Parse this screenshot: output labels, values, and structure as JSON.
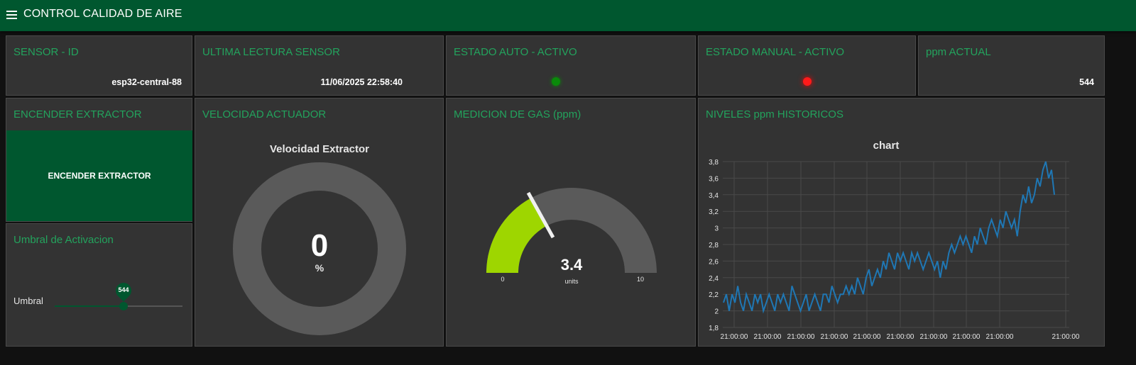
{
  "header": {
    "title": "CONTROL CALIDAD DE AIRE",
    "menu_icon": "hamburger-menu-icon"
  },
  "colors": {
    "header": "#00572f",
    "accent_title": "#23a35d",
    "card": "#333333",
    "gauge_fill": "#9ed600",
    "chart_line": "#1f77b4",
    "led_auto": "#0a8a0a",
    "led_manual": "#ff0000"
  },
  "sensor": {
    "title": "SENSOR - ID",
    "value": "esp32-central-88"
  },
  "last_reading": {
    "title": "ULTIMA LECTURA SENSOR",
    "value": "11/06/2025 22:58:40"
  },
  "auto_state": {
    "title": "ESTADO AUTO - ACTIVO",
    "led": "green"
  },
  "manual_state": {
    "title": "ESTADO MANUAL - ACTIVO",
    "led": "red"
  },
  "ppm_current": {
    "title": "ppm ACTUAL",
    "value": "544"
  },
  "extractor": {
    "title": "ENCENDER EXTRACTOR",
    "button_label": "ENCENDER EXTRACTOR"
  },
  "threshold": {
    "title": "Umbral de Activacion",
    "label": "Umbral",
    "value": "544",
    "fraction": 0.54
  },
  "speed": {
    "title": "VELOCIDAD ACTUADOR",
    "gauge_title": "Velocidad Extractor",
    "value": "0",
    "unit": "%"
  },
  "gas": {
    "title": "MEDICION DE GAS (ppm)",
    "value": "3.4",
    "unit": "units",
    "min": "0",
    "max": "10"
  },
  "history": {
    "title": "NIVELES ppm HISTORICOS",
    "chart_title": "chart",
    "x_labels": [
      "21:00:00",
      "21:00:00",
      "21:00:00",
      "21:00:00",
      "21:00:00",
      "21:00:00",
      "21:00:00",
      "21:00:00",
      "21:00:00",
      "21:00:00"
    ],
    "y_labels": [
      "3,8",
      "3,6",
      "3,4",
      "3,2",
      "3",
      "2,8",
      "2,6",
      "2,4",
      "2,2",
      "2",
      "1,8"
    ]
  },
  "chart_data": {
    "type": "line",
    "title": "chart",
    "ylim": [
      1.8,
      3.8
    ],
    "grid": true,
    "series": [
      {
        "values": [
          2.1,
          2.2,
          2.0,
          2.2,
          2.1,
          2.3,
          2.1,
          2.0,
          2.2,
          2.1,
          2.0,
          2.2,
          2.1,
          2.2,
          2.0,
          2.1,
          2.2,
          2.1,
          2.0,
          2.2,
          2.1,
          2.2,
          2.1,
          2.0,
          2.3,
          2.2,
          2.1,
          2.0,
          2.1,
          2.2,
          2.0,
          2.1,
          2.2,
          2.1,
          2.0,
          2.2,
          2.2,
          2.1,
          2.3,
          2.2,
          2.1,
          2.2,
          2.2,
          2.3,
          2.2,
          2.3,
          2.2,
          2.4,
          2.3,
          2.2,
          2.4,
          2.5,
          2.3,
          2.4,
          2.5,
          2.4,
          2.6,
          2.5,
          2.7,
          2.6,
          2.5,
          2.7,
          2.6,
          2.7,
          2.6,
          2.5,
          2.7,
          2.6,
          2.7,
          2.6,
          2.5,
          2.6,
          2.7,
          2.6,
          2.5,
          2.6,
          2.4,
          2.6,
          2.5,
          2.7,
          2.8,
          2.7,
          2.8,
          2.9,
          2.8,
          2.9,
          2.8,
          2.7,
          2.9,
          2.8,
          3.0,
          2.9,
          2.8,
          3.0,
          3.1,
          3.0,
          2.9,
          3.1,
          3.0,
          3.2,
          3.1,
          3.0,
          3.1,
          2.9,
          3.2,
          3.4,
          3.3,
          3.5,
          3.3,
          3.4,
          3.6,
          3.5,
          3.7,
          3.8,
          3.6,
          3.7,
          3.4
        ]
      }
    ]
  }
}
